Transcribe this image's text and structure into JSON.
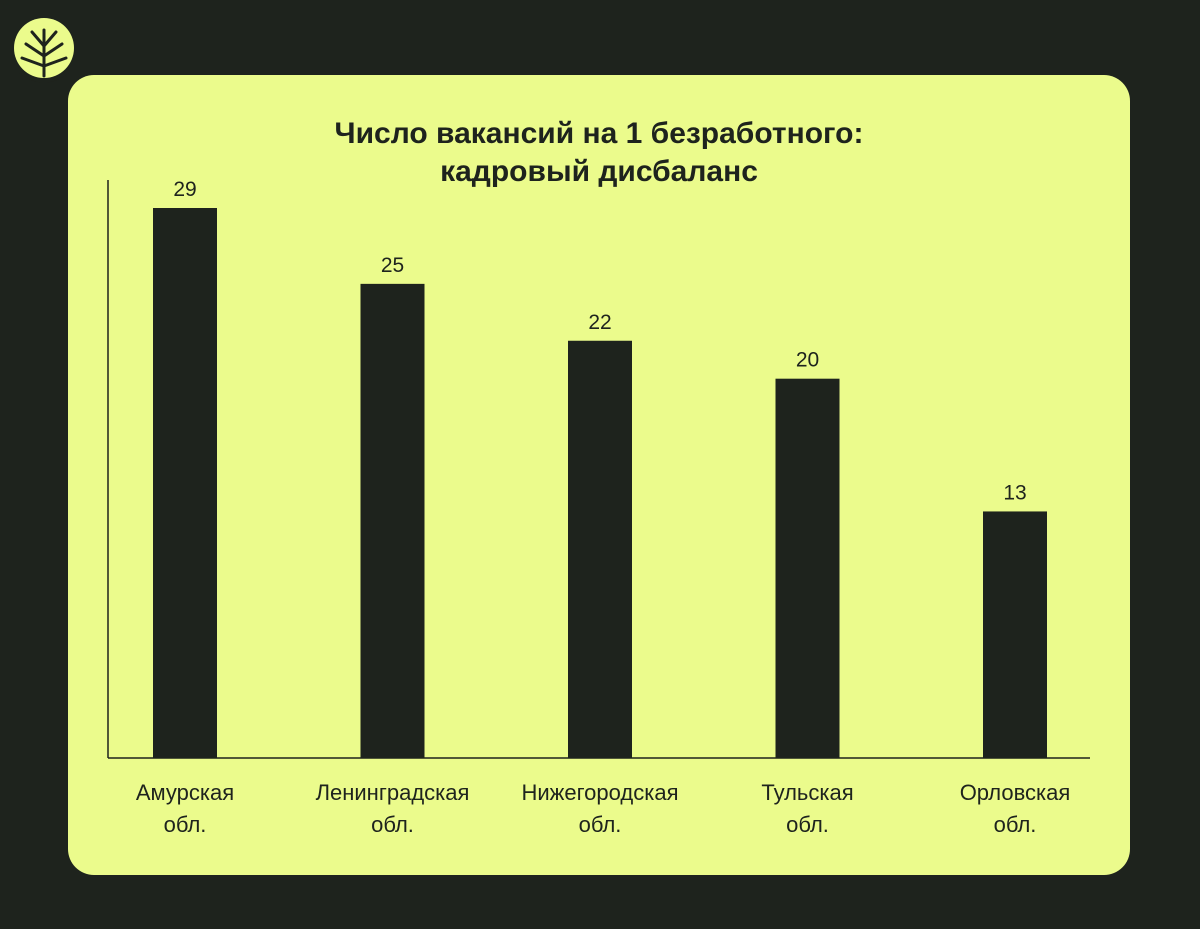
{
  "colors": {
    "background": "#1e231d",
    "card": "#ebfb8c",
    "bar": "#1e231d",
    "logo": "#ebfb8c"
  },
  "logo": {
    "icon": "tree-leaf-logo-icon"
  },
  "chart_data": {
    "type": "bar",
    "title_lines": [
      "Число вакансий на 1 безработного:",
      "кадровый дисбаланс"
    ],
    "categories": [
      [
        "Амурская",
        "обл."
      ],
      [
        "Ленинградская",
        "обл."
      ],
      [
        "Нижегородская",
        "обл."
      ],
      [
        "Тульская",
        "обл."
      ],
      [
        "Орловская",
        "обл."
      ]
    ],
    "values": [
      29,
      25,
      22,
      20,
      13
    ],
    "data_labels": [
      "29",
      "25",
      "22",
      "20",
      "13"
    ],
    "ylim": [
      0,
      30
    ],
    "grid": false,
    "legend": "none"
  }
}
